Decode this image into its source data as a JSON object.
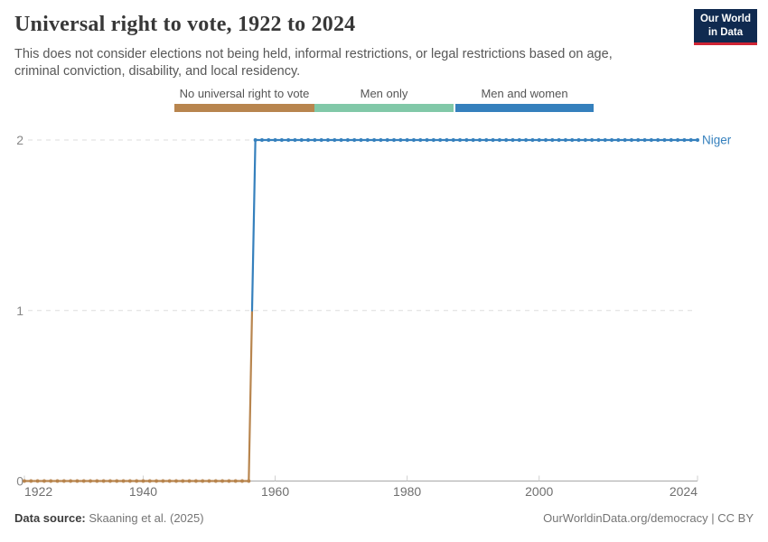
{
  "header": {
    "title": "Universal right to vote, 1922 to 2024",
    "subtitle": "This does not consider elections not being held, informal restrictions, or legal restrictions based on age, criminal conviction, disability, and local residency.",
    "logo": {
      "line1": "Our World",
      "line2": "in Data",
      "bg_color": "#102a50",
      "accent_color": "#cf2434"
    }
  },
  "legend": {
    "items": [
      {
        "label": "No universal right to vote",
        "color": "#b8854e"
      },
      {
        "label": "Men only",
        "color": "#81c8a8"
      },
      {
        "label": "Men and women",
        "color": "#3580bd"
      }
    ]
  },
  "chart_data": {
    "type": "line",
    "title": "Universal right to vote, 1922 to 2024",
    "entity": "Niger",
    "x": {
      "min": 1922,
      "max": 2024,
      "ticks": [
        1922,
        1940,
        1960,
        1980,
        2000,
        2024
      ]
    },
    "y": {
      "min": 0,
      "max": 2,
      "ticks": [
        0,
        1,
        2
      ],
      "gridlines": "dashed"
    },
    "value_labels": {
      "0": "No universal right to vote",
      "1": "Men only",
      "2": "Men and women"
    },
    "legend_position": "top",
    "series": [
      {
        "name": "Niger",
        "label_color": "#3580bd",
        "point_interval_years": 1,
        "segments": [
          {
            "from_year": 1922,
            "to_year": 1956,
            "value": 0,
            "category": "No universal right to vote",
            "color": "#b8854e"
          },
          {
            "from_year": 1957,
            "to_year": 2024,
            "value": 2,
            "category": "Men and women",
            "color": "#3580bd"
          }
        ]
      }
    ],
    "colors": {
      "grid": "#dedede",
      "axis": "#a8a8a8",
      "tick": "#cfcfcf",
      "x_label": "#6f6f6f",
      "y_label": "#878787"
    }
  },
  "footer": {
    "datasource_label": "Data source:",
    "datasource_value": "Skaaning et al. (2025)",
    "link": "OurWorldinData.org/democracy | CC BY"
  }
}
